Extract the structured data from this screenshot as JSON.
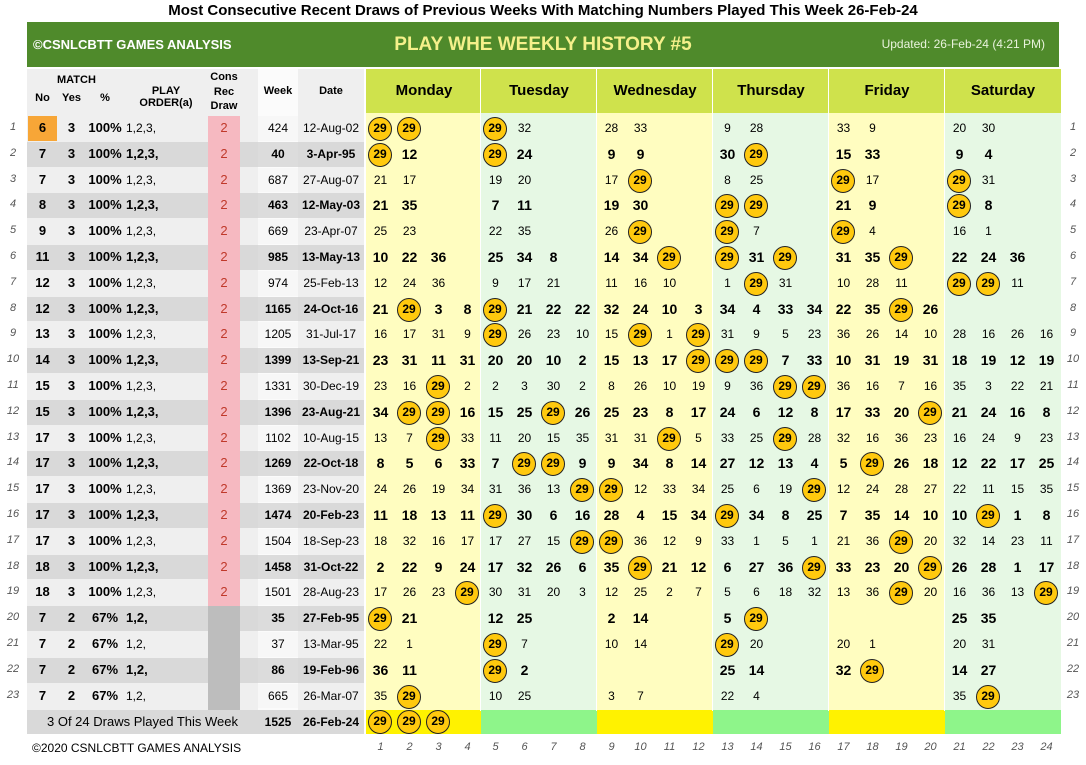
{
  "title": "Most Consecutive Recent Draws of Previous Weeks With Matching Numbers Played This Week 26-Feb-24",
  "banner": {
    "left": "©CSNLCBTT GAMES ANALYSIS",
    "center": "PLAY WHE WEEKLY HISTORY #5",
    "right": "Updated: 26-Feb-24 (4:21 PM)"
  },
  "headers": {
    "match": "MATCH",
    "no": "No",
    "yes": "Yes",
    "pct": "%",
    "play_order": "PLAY ORDER(a)",
    "cons": "Cons",
    "rec": "Rec",
    "draw": "Draw",
    "week": "Week",
    "date": "Date"
  },
  "days": [
    "Monday",
    "Tuesday",
    "Wednesday",
    "Thursday",
    "Friday",
    "Saturday"
  ],
  "highlight": "29",
  "colors": {
    "green_banner": "#4f8a2b",
    "day_header": "#cfe24c",
    "circle": "#ffc90e",
    "cons_pink": "#f6b9c1"
  },
  "rows": [
    {
      "n": "1",
      "no": "6",
      "yes": "3",
      "pct": "100%",
      "order": "1,2,3,",
      "cons": "2",
      "week": "424",
      "date": "12-Aug-02",
      "bold": false,
      "cells": [
        [
          "29",
          "29",
          "",
          ""
        ],
        [
          "29",
          "32",
          "",
          ""
        ],
        [
          "28",
          "33",
          "",
          ""
        ],
        [
          "9",
          "28",
          "",
          ""
        ],
        [
          "33",
          "9",
          "",
          ""
        ],
        [
          "20",
          "30",
          "",
          ""
        ]
      ]
    },
    {
      "n": "2",
      "no": "7",
      "yes": "3",
      "pct": "100%",
      "order": "1,2,3,",
      "cons": "2",
      "week": "40",
      "date": "3-Apr-95",
      "bold": true,
      "cells": [
        [
          "29",
          "12",
          "",
          ""
        ],
        [
          "29",
          "24",
          "",
          ""
        ],
        [
          "9",
          "9",
          "",
          ""
        ],
        [
          "30",
          "29",
          "",
          ""
        ],
        [
          "15",
          "33",
          "",
          ""
        ],
        [
          "9",
          "4",
          "",
          ""
        ]
      ]
    },
    {
      "n": "3",
      "no": "7",
      "yes": "3",
      "pct": "100%",
      "order": "1,2,3,",
      "cons": "2",
      "week": "687",
      "date": "27-Aug-07",
      "bold": false,
      "cells": [
        [
          "21",
          "17",
          "",
          ""
        ],
        [
          "19",
          "20",
          "",
          ""
        ],
        [
          "17",
          "29",
          "",
          ""
        ],
        [
          "8",
          "25",
          "",
          ""
        ],
        [
          "29",
          "17",
          "",
          ""
        ],
        [
          "29",
          "31",
          "",
          ""
        ]
      ]
    },
    {
      "n": "4",
      "no": "8",
      "yes": "3",
      "pct": "100%",
      "order": "1,2,3,",
      "cons": "2",
      "week": "463",
      "date": "12-May-03",
      "bold": true,
      "cells": [
        [
          "21",
          "35",
          "",
          ""
        ],
        [
          "7",
          "11",
          "",
          ""
        ],
        [
          "19",
          "30",
          "",
          ""
        ],
        [
          "29",
          "29",
          "",
          ""
        ],
        [
          "21",
          "9",
          "",
          ""
        ],
        [
          "29",
          "8",
          "",
          ""
        ]
      ]
    },
    {
      "n": "5",
      "no": "9",
      "yes": "3",
      "pct": "100%",
      "order": "1,2,3,",
      "cons": "2",
      "week": "669",
      "date": "23-Apr-07",
      "bold": false,
      "cells": [
        [
          "25",
          "23",
          "",
          ""
        ],
        [
          "22",
          "35",
          "",
          ""
        ],
        [
          "26",
          "29",
          "",
          ""
        ],
        [
          "29",
          "7",
          "",
          ""
        ],
        [
          "29",
          "4",
          "",
          ""
        ],
        [
          "16",
          "1",
          "",
          ""
        ]
      ]
    },
    {
      "n": "6",
      "no": "11",
      "yes": "3",
      "pct": "100%",
      "order": "1,2,3,",
      "cons": "2",
      "week": "985",
      "date": "13-May-13",
      "bold": true,
      "cells": [
        [
          "10",
          "22",
          "36",
          ""
        ],
        [
          "25",
          "34",
          "8",
          ""
        ],
        [
          "14",
          "34",
          "29",
          ""
        ],
        [
          "29",
          "31",
          "29",
          ""
        ],
        [
          "31",
          "35",
          "29",
          ""
        ],
        [
          "22",
          "24",
          "36",
          ""
        ]
      ]
    },
    {
      "n": "7",
      "no": "12",
      "yes": "3",
      "pct": "100%",
      "order": "1,2,3,",
      "cons": "2",
      "week": "974",
      "date": "25-Feb-13",
      "bold": false,
      "cells": [
        [
          "12",
          "24",
          "36",
          ""
        ],
        [
          "9",
          "17",
          "21",
          ""
        ],
        [
          "11",
          "16",
          "10",
          ""
        ],
        [
          "1",
          "29",
          "31",
          ""
        ],
        [
          "10",
          "28",
          "11",
          ""
        ],
        [
          "29",
          "29",
          "11",
          ""
        ]
      ]
    },
    {
      "n": "8",
      "no": "12",
      "yes": "3",
      "pct": "100%",
      "order": "1,2,3,",
      "cons": "2",
      "week": "1165",
      "date": "24-Oct-16",
      "bold": true,
      "cells": [
        [
          "21",
          "29",
          "3",
          "8"
        ],
        [
          "29",
          "21",
          "22",
          "22"
        ],
        [
          "32",
          "24",
          "10",
          "3"
        ],
        [
          "34",
          "4",
          "33",
          "34"
        ],
        [
          "22",
          "35",
          "29",
          "26"
        ],
        [
          "",
          "",
          "",
          ""
        ]
      ]
    },
    {
      "n": "9",
      "no": "13",
      "yes": "3",
      "pct": "100%",
      "order": "1,2,3,",
      "cons": "2",
      "week": "1205",
      "date": "31-Jul-17",
      "bold": false,
      "cells": [
        [
          "16",
          "17",
          "31",
          "9"
        ],
        [
          "29",
          "26",
          "23",
          "10"
        ],
        [
          "15",
          "29",
          "1",
          "29"
        ],
        [
          "31",
          "9",
          "5",
          "23"
        ],
        [
          "36",
          "26",
          "14",
          "10"
        ],
        [
          "28",
          "16",
          "26",
          "16"
        ]
      ]
    },
    {
      "n": "10",
      "no": "14",
      "yes": "3",
      "pct": "100%",
      "order": "1,2,3,",
      "cons": "2",
      "week": "1399",
      "date": "13-Sep-21",
      "bold": true,
      "cells": [
        [
          "23",
          "31",
          "11",
          "31"
        ],
        [
          "20",
          "20",
          "10",
          "2"
        ],
        [
          "15",
          "13",
          "17",
          "29"
        ],
        [
          "29",
          "29",
          "7",
          "33"
        ],
        [
          "10",
          "31",
          "19",
          "31"
        ],
        [
          "18",
          "19",
          "12",
          "19"
        ]
      ]
    },
    {
      "n": "11",
      "no": "15",
      "yes": "3",
      "pct": "100%",
      "order": "1,2,3,",
      "cons": "2",
      "week": "1331",
      "date": "30-Dec-19",
      "bold": false,
      "cells": [
        [
          "23",
          "16",
          "29",
          "2"
        ],
        [
          "2",
          "3",
          "30",
          "2"
        ],
        [
          "8",
          "26",
          "10",
          "19"
        ],
        [
          "9",
          "36",
          "29",
          "29"
        ],
        [
          "36",
          "16",
          "7",
          "16"
        ],
        [
          "35",
          "3",
          "22",
          "21"
        ]
      ]
    },
    {
      "n": "12",
      "no": "15",
      "yes": "3",
      "pct": "100%",
      "order": "1,2,3,",
      "cons": "2",
      "week": "1396",
      "date": "23-Aug-21",
      "bold": true,
      "cells": [
        [
          "34",
          "29",
          "29",
          "16"
        ],
        [
          "15",
          "25",
          "29",
          "26"
        ],
        [
          "25",
          "23",
          "8",
          "17"
        ],
        [
          "24",
          "6",
          "12",
          "8"
        ],
        [
          "17",
          "33",
          "20",
          "29"
        ],
        [
          "21",
          "24",
          "16",
          "8"
        ]
      ]
    },
    {
      "n": "13",
      "no": "17",
      "yes": "3",
      "pct": "100%",
      "order": "1,2,3,",
      "cons": "2",
      "week": "1102",
      "date": "10-Aug-15",
      "bold": false,
      "cells": [
        [
          "13",
          "7",
          "29",
          "33"
        ],
        [
          "11",
          "20",
          "15",
          "35"
        ],
        [
          "31",
          "31",
          "29",
          "5"
        ],
        [
          "33",
          "25",
          "29",
          "28"
        ],
        [
          "32",
          "16",
          "36",
          "23"
        ],
        [
          "16",
          "24",
          "9",
          "23"
        ]
      ]
    },
    {
      "n": "14",
      "no": "17",
      "yes": "3",
      "pct": "100%",
      "order": "1,2,3,",
      "cons": "2",
      "week": "1269",
      "date": "22-Oct-18",
      "bold": true,
      "cells": [
        [
          "8",
          "5",
          "6",
          "33"
        ],
        [
          "7",
          "29",
          "29",
          "9"
        ],
        [
          "9",
          "34",
          "8",
          "14"
        ],
        [
          "27",
          "12",
          "13",
          "4"
        ],
        [
          "5",
          "29",
          "26",
          "18"
        ],
        [
          "12",
          "22",
          "17",
          "25"
        ]
      ]
    },
    {
      "n": "15",
      "no": "17",
      "yes": "3",
      "pct": "100%",
      "order": "1,2,3,",
      "cons": "2",
      "week": "1369",
      "date": "23-Nov-20",
      "bold": false,
      "cells": [
        [
          "24",
          "26",
          "19",
          "34"
        ],
        [
          "31",
          "36",
          "13",
          "29"
        ],
        [
          "29",
          "12",
          "33",
          "34"
        ],
        [
          "25",
          "6",
          "19",
          "29"
        ],
        [
          "12",
          "24",
          "28",
          "27"
        ],
        [
          "22",
          "11",
          "15",
          "35"
        ]
      ]
    },
    {
      "n": "16",
      "no": "17",
      "yes": "3",
      "pct": "100%",
      "order": "1,2,3,",
      "cons": "2",
      "week": "1474",
      "date": "20-Feb-23",
      "bold": true,
      "cells": [
        [
          "11",
          "18",
          "13",
          "11"
        ],
        [
          "29",
          "30",
          "6",
          "16"
        ],
        [
          "28",
          "4",
          "15",
          "34"
        ],
        [
          "29",
          "34",
          "8",
          "25"
        ],
        [
          "7",
          "35",
          "14",
          "10"
        ],
        [
          "10",
          "29",
          "1",
          "8"
        ]
      ]
    },
    {
      "n": "17",
      "no": "17",
      "yes": "3",
      "pct": "100%",
      "order": "1,2,3,",
      "cons": "2",
      "week": "1504",
      "date": "18-Sep-23",
      "bold": false,
      "cells": [
        [
          "18",
          "32",
          "16",
          "17"
        ],
        [
          "17",
          "27",
          "15",
          "29"
        ],
        [
          "29",
          "36",
          "12",
          "9"
        ],
        [
          "33",
          "1",
          "5",
          "1"
        ],
        [
          "21",
          "36",
          "29",
          "20"
        ],
        [
          "32",
          "14",
          "23",
          "11"
        ]
      ]
    },
    {
      "n": "18",
      "no": "18",
      "yes": "3",
      "pct": "100%",
      "order": "1,2,3,",
      "cons": "2",
      "week": "1458",
      "date": "31-Oct-22",
      "bold": true,
      "cells": [
        [
          "2",
          "22",
          "9",
          "24"
        ],
        [
          "17",
          "32",
          "26",
          "6"
        ],
        [
          "35",
          "29",
          "21",
          "12"
        ],
        [
          "6",
          "27",
          "36",
          "29"
        ],
        [
          "33",
          "23",
          "20",
          "29"
        ],
        [
          "26",
          "28",
          "1",
          "17"
        ]
      ]
    },
    {
      "n": "19",
      "no": "18",
      "yes": "3",
      "pct": "100%",
      "order": "1,2,3,",
      "cons": "2",
      "week": "1501",
      "date": "28-Aug-23",
      "bold": false,
      "cells": [
        [
          "17",
          "26",
          "23",
          "29"
        ],
        [
          "30",
          "31",
          "20",
          "3"
        ],
        [
          "12",
          "25",
          "2",
          "7"
        ],
        [
          "5",
          "6",
          "18",
          "32"
        ],
        [
          "13",
          "36",
          "29",
          "20"
        ],
        [
          "16",
          "36",
          "13",
          "29"
        ]
      ]
    },
    {
      "n": "20",
      "no": "7",
      "yes": "2",
      "pct": "67%",
      "order": "1,2,",
      "cons": "",
      "week": "35",
      "date": "27-Feb-95",
      "bold": true,
      "cells": [
        [
          "29",
          "21",
          "",
          ""
        ],
        [
          "12",
          "25",
          "",
          ""
        ],
        [
          "2",
          "14",
          "",
          ""
        ],
        [
          "5",
          "29",
          "",
          ""
        ],
        [
          "",
          "",
          "",
          ""
        ],
        [
          "25",
          "35",
          "",
          ""
        ]
      ]
    },
    {
      "n": "21",
      "no": "7",
      "yes": "2",
      "pct": "67%",
      "order": "1,2,",
      "cons": "",
      "week": "37",
      "date": "13-Mar-95",
      "bold": false,
      "cells": [
        [
          "22",
          "1",
          "",
          ""
        ],
        [
          "29",
          "7",
          "",
          ""
        ],
        [
          "10",
          "14",
          "",
          ""
        ],
        [
          "29",
          "20",
          "",
          ""
        ],
        [
          "20",
          "1",
          "",
          ""
        ],
        [
          "20",
          "31",
          "",
          ""
        ]
      ]
    },
    {
      "n": "22",
      "no": "7",
      "yes": "2",
      "pct": "67%",
      "order": "1,2,",
      "cons": "",
      "week": "86",
      "date": "19-Feb-96",
      "bold": true,
      "cells": [
        [
          "36",
          "11",
          "",
          ""
        ],
        [
          "29",
          "2",
          "",
          ""
        ],
        [
          "",
          "",
          "",
          ""
        ],
        [
          "25",
          "14",
          "",
          ""
        ],
        [
          "32",
          "29",
          "",
          ""
        ],
        [
          "14",
          "27",
          "",
          ""
        ]
      ]
    },
    {
      "n": "23",
      "no": "7",
      "yes": "2",
      "pct": "67%",
      "order": "1,2,",
      "cons": "",
      "week": "665",
      "date": "26-Mar-07",
      "bold": false,
      "cells": [
        [
          "35",
          "29",
          "",
          ""
        ],
        [
          "10",
          "25",
          "",
          ""
        ],
        [
          "3",
          "7",
          "",
          ""
        ],
        [
          "22",
          "4",
          "",
          ""
        ],
        [
          "",
          "",
          "",
          ""
        ],
        [
          "35",
          "29",
          "",
          ""
        ]
      ]
    }
  ],
  "current": {
    "label": "3 Of 24 Draws Played This Week",
    "week": "1525",
    "date": "26-Feb-24",
    "cells": [
      "29",
      "29",
      "29"
    ]
  },
  "footer": "©2020 CSNLCBTT GAMES ANALYSIS",
  "col_numbers": [
    "1",
    "2",
    "3",
    "4",
    "5",
    "6",
    "7",
    "8",
    "9",
    "10",
    "11",
    "12",
    "13",
    "14",
    "15",
    "16",
    "17",
    "18",
    "19",
    "20",
    "21",
    "22",
    "23",
    "24"
  ]
}
